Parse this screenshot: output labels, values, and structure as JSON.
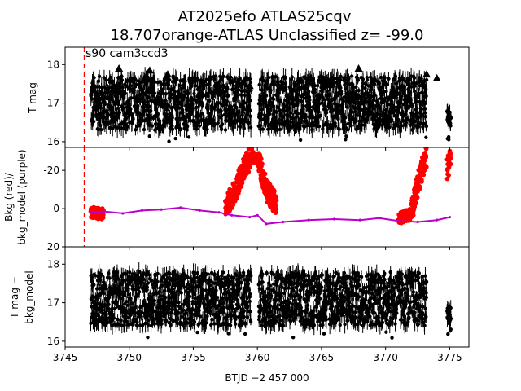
{
  "figure": {
    "title_line1": "AT2025efo  ATLAS25cqv",
    "title_line2": "18.707orange-ATLAS Unclassified z= -99.0",
    "xlabel": "BTJD −2 457 000",
    "annotation": "s90 cam3ccd3"
  },
  "chart_data": [
    {
      "type": "scatter",
      "panel": "top",
      "ylabel": "T mag",
      "xlim": [
        3745,
        3776.5
      ],
      "ylim": [
        18.45,
        15.85
      ],
      "y_inverted": true,
      "yticks": [
        16,
        17,
        18
      ],
      "xticks": [
        3745,
        3750,
        3755,
        3760,
        3765,
        3770,
        3775
      ],
      "vline": {
        "x": 3746.5,
        "color": "#ff0000",
        "style": "dashed"
      },
      "segments": [
        {
          "x_start": 3747.0,
          "x_end": 3759.5,
          "y_center": 17.0,
          "y_spread": 0.7
        },
        {
          "x_start": 3760.1,
          "x_end": 3773.2,
          "y_center": 17.0,
          "y_spread": 0.7
        },
        {
          "x_start": 3774.8,
          "x_end": 3775.1,
          "y_center": 16.6,
          "y_spread": 0.2
        }
      ],
      "upper_limits": [
        {
          "x": 3749.2,
          "y": 17.9
        },
        {
          "x": 3751.6,
          "y": 17.85
        },
        {
          "x": 3753.0,
          "y": 17.75
        },
        {
          "x": 3758.9,
          "y": 17.55
        },
        {
          "x": 3759.4,
          "y": 17.45
        },
        {
          "x": 3764.0,
          "y": 17.6
        },
        {
          "x": 3767.9,
          "y": 17.9
        },
        {
          "x": 3769.0,
          "y": 17.55
        },
        {
          "x": 3771.3,
          "y": 17.65
        },
        {
          "x": 3773.2,
          "y": 17.75
        },
        {
          "x": 3774.0,
          "y": 17.65
        }
      ],
      "color": "#000000"
    },
    {
      "type": "scatter",
      "panel": "middle",
      "ylabel_line1": "Bkg (red)/",
      "ylabel_line2": "bkg_model (purple)",
      "xlim": [
        3745,
        3776.5
      ],
      "ylim": [
        -32,
        20
      ],
      "yticks": [
        20,
        0,
        -20
      ],
      "vline": {
        "x": 3746.5,
        "color": "#ff0000",
        "style": "dashed"
      },
      "bkg_color": "#ff0000",
      "model_color": "#bb00cc",
      "bkg_points_profile": [
        {
          "x": 3747.0,
          "y": 2
        },
        {
          "x": 3748.0,
          "y": 3
        },
        {
          "x": 3750.0,
          "y": 3
        },
        {
          "x": 3752.0,
          "y": 2
        },
        {
          "x": 3754.0,
          "y": 1
        },
        {
          "x": 3756.0,
          "y": 2
        },
        {
          "x": 3757.5,
          "y": 0
        },
        {
          "x": 3758.3,
          "y": -10
        },
        {
          "x": 3759.0,
          "y": -22
        },
        {
          "x": 3759.6,
          "y": -28
        },
        {
          "x": 3760.1,
          "y": -25
        },
        {
          "x": 3760.7,
          "y": -10
        },
        {
          "x": 3761.5,
          "y": -2
        },
        {
          "x": 3763.0,
          "y": 1
        },
        {
          "x": 3765.0,
          "y": 2
        },
        {
          "x": 3767.0,
          "y": 3
        },
        {
          "x": 3769.0,
          "y": 4
        },
        {
          "x": 3771.0,
          "y": 5
        },
        {
          "x": 3772.0,
          "y": 3
        },
        {
          "x": 3772.6,
          "y": -15
        },
        {
          "x": 3773.2,
          "y": -28
        },
        {
          "x": 3774.8,
          "y": -20
        },
        {
          "x": 3775.1,
          "y": -28
        }
      ],
      "model_line": [
        {
          "x": 3747.0,
          "y": 2
        },
        {
          "x": 3748.0,
          "y": 1.5
        },
        {
          "x": 3749.5,
          "y": 2.5
        },
        {
          "x": 3751.0,
          "y": 1
        },
        {
          "x": 3752.5,
          "y": 0.5
        },
        {
          "x": 3754.0,
          "y": -0.5
        },
        {
          "x": 3755.5,
          "y": 1
        },
        {
          "x": 3757.0,
          "y": 2
        },
        {
          "x": 3758.0,
          "y": 3.5
        },
        {
          "x": 3759.4,
          "y": 4.5
        },
        {
          "x": 3760.0,
          "y": 3.5
        },
        {
          "x": 3760.7,
          "y": 8
        },
        {
          "x": 3762.0,
          "y": 7
        },
        {
          "x": 3764.0,
          "y": 6
        },
        {
          "x": 3766.0,
          "y": 5.5
        },
        {
          "x": 3768.0,
          "y": 6
        },
        {
          "x": 3769.5,
          "y": 5
        },
        {
          "x": 3771.0,
          "y": 6.5
        },
        {
          "x": 3772.5,
          "y": 7
        },
        {
          "x": 3774.0,
          "y": 6
        },
        {
          "x": 3775.0,
          "y": 4.5
        }
      ]
    },
    {
      "type": "scatter",
      "panel": "bottom",
      "ylabel_line1": "T mag −",
      "ylabel_line2": "bkg_model",
      "xlim": [
        3745,
        3776.5
      ],
      "ylim": [
        18.45,
        15.85
      ],
      "y_inverted": true,
      "yticks": [
        16,
        17,
        18
      ],
      "xticks": [
        3745,
        3750,
        3755,
        3760,
        3765,
        3770,
        3775
      ],
      "segments": [
        {
          "x_start": 3747.0,
          "x_end": 3759.5,
          "y_center": 17.1,
          "y_spread": 0.7
        },
        {
          "x_start": 3760.1,
          "x_end": 3773.2,
          "y_center": 17.1,
          "y_spread": 0.7
        },
        {
          "x_start": 3774.8,
          "x_end": 3775.1,
          "y_center": 16.7,
          "y_spread": 0.2
        }
      ],
      "color": "#000000"
    }
  ]
}
